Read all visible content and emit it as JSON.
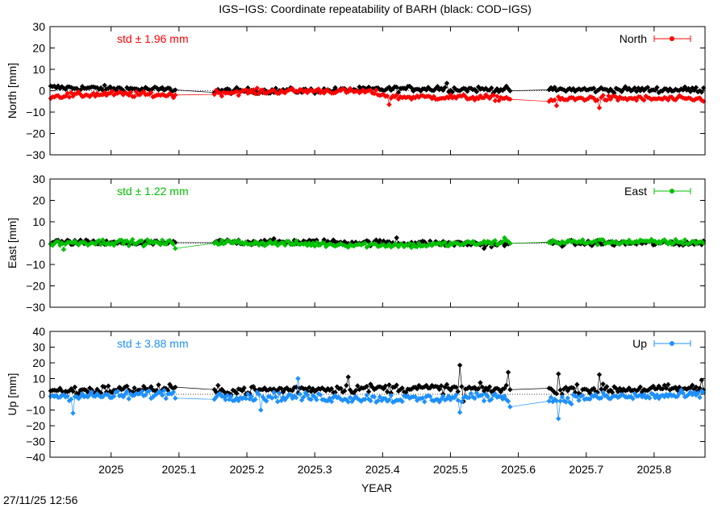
{
  "title": "IGS−IGS: Coordinate repeatability of BARH (black: COD−IGS)",
  "timestamp": "27/11/25 12:56",
  "colors": {
    "reference": "#000000",
    "north": "#ff0000",
    "east": "#00c000",
    "up": "#1e90ff"
  },
  "chart_data": {
    "type": "scatter",
    "xlabel": "YEAR",
    "xlim": [
      2024.91,
      2025.875
    ],
    "xticks": [
      "2025",
      "2025.1",
      "2025.2",
      "2025.3",
      "2025.4",
      "2025.5",
      "2025.6",
      "2025.7",
      "2025.8"
    ],
    "data_gaps": [
      [
        2025.095,
        2025.15
      ],
      [
        2025.59,
        2025.645
      ]
    ],
    "panels": [
      {
        "name": "north",
        "ylabel": "North [mm]",
        "ylim": [
          -30,
          30
        ],
        "yticks": [
          "30",
          "20",
          "10",
          "0",
          "−10",
          "−20",
          "−30"
        ],
        "legend": "North",
        "std_label": "std ± 1.96 mm",
        "std_mm": 1.96,
        "series": [
          {
            "name": "black: COD−IGS",
            "color": "#000000",
            "segments": [
              [
                2024.91,
                1.5
              ],
              [
                2025.0,
                1.0
              ],
              [
                2025.09,
                0.5
              ],
              [
                2025.15,
                0.0
              ],
              [
                2025.3,
                0.0
              ],
              [
                2025.45,
                1.0
              ],
              [
                2025.59,
                0.5
              ],
              [
                2025.645,
                0.5
              ],
              [
                2025.875,
                0.5
              ]
            ],
            "spikes": [
              [
                2025.495,
                3.5
              ],
              [
                2025.48,
                2.0
              ]
            ]
          },
          {
            "name": "IGS",
            "color": "#ff0000",
            "segments": [
              [
                2024.91,
                -2.5
              ],
              [
                2025.0,
                -1.5
              ],
              [
                2025.09,
                -2.0
              ],
              [
                2025.15,
                -1.0
              ],
              [
                2025.2,
                -0.5
              ],
              [
                2025.3,
                0.0
              ],
              [
                2025.38,
                -0.5
              ],
              [
                2025.42,
                -3.0
              ],
              [
                2025.5,
                -3.0
              ],
              [
                2025.59,
                -3.5
              ],
              [
                2025.645,
                -4.5
              ],
              [
                2025.7,
                -3.5
              ],
              [
                2025.875,
                -4.0
              ]
            ],
            "spikes": [
              [
                2025.41,
                -6.5
              ],
              [
                2025.655,
                -7.0
              ],
              [
                2025.72,
                -8.0
              ]
            ]
          }
        ]
      },
      {
        "name": "east",
        "ylabel": "East [mm]",
        "ylim": [
          -30,
          30
        ],
        "yticks": [
          "30",
          "20",
          "10",
          "0",
          "−10",
          "−20",
          "−30"
        ],
        "legend": "East",
        "std_label": "std ± 1.22 mm",
        "std_mm": 1.22,
        "series": [
          {
            "name": "black: COD−IGS",
            "color": "#000000",
            "segments": [
              [
                2024.91,
                0.5
              ],
              [
                2025.0,
                0.0
              ],
              [
                2025.09,
                0.0
              ],
              [
                2025.15,
                0.5
              ],
              [
                2025.3,
                0.5
              ],
              [
                2025.45,
                0.0
              ],
              [
                2025.59,
                -0.5
              ],
              [
                2025.645,
                0.0
              ],
              [
                2025.875,
                0.0
              ]
            ],
            "spikes": [
              [
                2025.42,
                2.5
              ],
              [
                2025.55,
                -2.5
              ]
            ]
          },
          {
            "name": "IGS",
            "color": "#00c000",
            "segments": [
              [
                2024.91,
                0.0
              ],
              [
                2025.0,
                0.5
              ],
              [
                2025.09,
                0.0
              ],
              [
                2025.15,
                0.5
              ],
              [
                2025.3,
                -0.5
              ],
              [
                2025.45,
                -1.0
              ],
              [
                2025.59,
                0.5
              ],
              [
                2025.645,
                0.5
              ],
              [
                2025.875,
                0.5
              ]
            ],
            "spikes": [
              [
                2024.93,
                -3.0
              ],
              [
                2025.1,
                -2.5
              ],
              [
                2025.58,
                2.5
              ]
            ]
          }
        ]
      },
      {
        "name": "up",
        "ylabel": "Up [mm]",
        "ylim": [
          -40,
          40
        ],
        "yticks": [
          "40",
          "30",
          "20",
          "10",
          "0",
          "−10",
          "−20",
          "−30",
          "−40"
        ],
        "legend": "Up",
        "std_label": "std ± 3.88 mm",
        "std_mm": 3.88,
        "series": [
          {
            "name": "black: COD−IGS",
            "color": "#000000",
            "segments": [
              [
                2024.91,
                2.0
              ],
              [
                2025.0,
                3.0
              ],
              [
                2025.09,
                3.5
              ],
              [
                2025.15,
                2.0
              ],
              [
                2025.3,
                3.5
              ],
              [
                2025.45,
                4.0
              ],
              [
                2025.59,
                3.0
              ],
              [
                2025.645,
                3.0
              ],
              [
                2025.875,
                3.5
              ]
            ],
            "spikes": [
              [
                2025.515,
                18.5
              ],
              [
                2025.52,
                -4.5
              ],
              [
                2025.66,
                13.0
              ],
              [
                2025.585,
                14.0
              ],
              [
                2025.35,
                11.0
              ],
              [
                2025.72,
                12.5
              ],
              [
                2025.87,
                9.0
              ]
            ]
          },
          {
            "name": "IGS",
            "color": "#1e90ff",
            "segments": [
              [
                2024.91,
                -1.0
              ],
              [
                2025.0,
                -1.0
              ],
              [
                2025.09,
                0.5
              ],
              [
                2025.15,
                -1.0
              ],
              [
                2025.3,
                -2.0
              ],
              [
                2025.45,
                -3.0
              ],
              [
                2025.59,
                -1.0
              ],
              [
                2025.645,
                -4.0
              ],
              [
                2025.7,
                -2.0
              ],
              [
                2025.875,
                -0.5
              ]
            ],
            "spikes": [
              [
                2024.945,
                -12.0
              ],
              [
                2025.515,
                -11.5
              ],
              [
                2025.66,
                -15.5
              ],
              [
                2025.275,
                10.0
              ],
              [
                2025.22,
                -10.0
              ],
              [
                2025.59,
                -8.0
              ]
            ]
          }
        ]
      }
    ]
  }
}
